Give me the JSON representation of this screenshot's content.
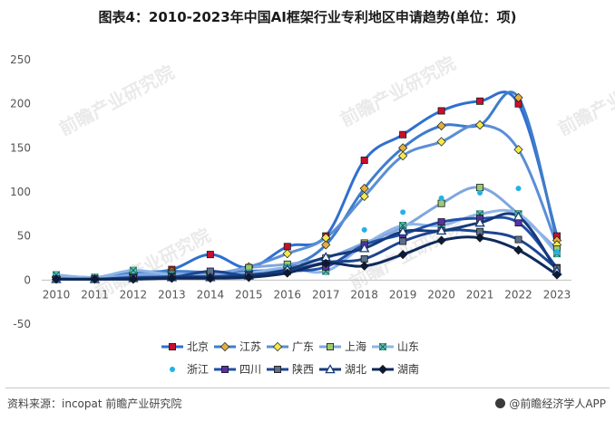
{
  "header": {
    "title": "图表4：2010-2023年中国AI框架行业专利地区申请趋势(单位：项)"
  },
  "footer": {
    "source": "资料来源：incopat 前瞻产业研究院",
    "brand": "@前瞻经济学人APP"
  },
  "watermark": {
    "text": "前瞻产业研究院"
  },
  "chart_data": {
    "type": "line",
    "title": "图表4：2010-2023年中国AI框架行业专利地区申请趋势(单位：项)",
    "xlabel": "",
    "ylabel": "",
    "categories": [
      "2010",
      "2011",
      "2012",
      "2013",
      "2014",
      "2015",
      "2016",
      "2017",
      "2018",
      "2019",
      "2020",
      "2021",
      "2022",
      "2023"
    ],
    "ylim": [
      -50,
      250
    ],
    "yticks": [
      250,
      200,
      150,
      100,
      50,
      0,
      -50
    ],
    "grid": false,
    "legend_position": "bottom",
    "series": [
      {
        "name": "北京",
        "color": "#2f6fcf",
        "marker": "square",
        "marker_color": "#c8102e",
        "values": [
          5,
          3,
          7,
          12,
          29,
          14,
          38,
          50,
          136,
          165,
          192,
          203,
          200,
          50
        ]
      },
      {
        "name": "江苏",
        "color": "#3f7ccb",
        "marker": "diamond",
        "marker_color": "#e0b040",
        "values": [
          4,
          2,
          8,
          10,
          9,
          10,
          15,
          40,
          104,
          150,
          175,
          176,
          207,
          45
        ]
      },
      {
        "name": "广东",
        "color": "#5b8ed6",
        "marker": "diamond",
        "marker_color": "#f2e94e",
        "values": [
          3,
          2,
          6,
          8,
          7,
          15,
          30,
          48,
          95,
          141,
          157,
          176,
          148,
          40
        ]
      },
      {
        "name": "上海",
        "color": "#7fa6de",
        "marker": "square",
        "marker_color": "#9ccc6e",
        "values": [
          4,
          2,
          6,
          7,
          6,
          14,
          18,
          25,
          42,
          60,
          87,
          105,
          75,
          35
        ]
      },
      {
        "name": "山东",
        "color": "#8eb6e6",
        "marker": "cross",
        "marker_color": "#5cc4b4",
        "values": [
          6,
          3,
          11,
          6,
          5,
          8,
          14,
          10,
          40,
          62,
          62,
          75,
          75,
          30
        ]
      },
      {
        "name": "浙江",
        "color": "#23b1e8",
        "marker": "dot",
        "marker_color": "#23b1e8",
        "values": [
          4,
          2,
          5,
          6,
          6,
          8,
          14,
          18,
          57,
          77,
          93,
          99,
          104,
          32
        ]
      },
      {
        "name": "四川",
        "color": "#1f4fa8",
        "marker": "square",
        "marker_color": "#5b2fa8",
        "values": [
          1,
          1,
          3,
          4,
          4,
          6,
          10,
          15,
          40,
          52,
          66,
          70,
          65,
          14
        ]
      },
      {
        "name": "陕西",
        "color": "#1d4590",
        "marker": "square",
        "marker_color": "#5a6f8a",
        "values": [
          1,
          1,
          2,
          3,
          10,
          5,
          10,
          20,
          24,
          44,
          56,
          55,
          46,
          13
        ]
      },
      {
        "name": "湖北",
        "color": "#163a7a",
        "marker": "triangle",
        "marker_color": "#ffffff",
        "values": [
          1,
          1,
          2,
          3,
          3,
          5,
          12,
          26,
          36,
          55,
          56,
          65,
          72,
          10
        ]
      },
      {
        "name": "湖南",
        "color": "#0f2a5c",
        "marker": "diamond",
        "marker_color": "#0a1a3a",
        "values": [
          1,
          1,
          1,
          2,
          2,
          3,
          8,
          19,
          16,
          29,
          45,
          48,
          34,
          6
        ]
      }
    ]
  }
}
